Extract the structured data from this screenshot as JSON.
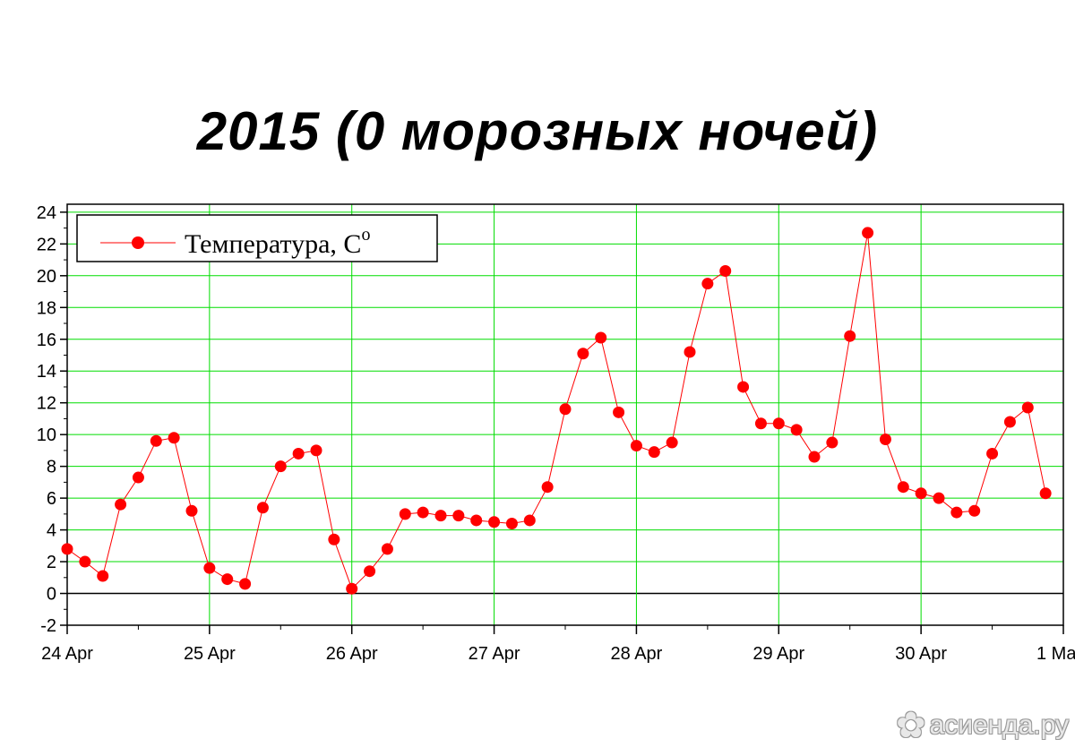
{
  "title": "2015 (0 морозных ночей)",
  "watermark": {
    "text": "асиенда.ру",
    "icon": "flower-logo-icon"
  },
  "colors": {
    "series": "#ff0000",
    "grid": "#00dd00",
    "axis": "#000000",
    "zero_line": "#000000"
  },
  "chart_data": {
    "type": "line",
    "title": "2015 (0 морозных ночей)",
    "xlabel": "",
    "ylabel": "",
    "x_axis": {
      "type": "date",
      "range": [
        "2015-04-24",
        "2015-05-01"
      ],
      "tick_labels": [
        "24 Apr",
        "25 Apr",
        "26 Apr",
        "27 Apr",
        "28 Apr",
        "29 Apr",
        "30 Apr",
        "1 Ma"
      ]
    },
    "ylim": [
      -2,
      24.5
    ],
    "y_ticks": [
      24,
      22,
      20,
      18,
      16,
      14,
      12,
      10,
      8,
      6,
      4,
      2,
      0,
      -2
    ],
    "grid": true,
    "legend": {
      "placement": "top-left",
      "label": "Температура, C",
      "label_superscript": "o"
    },
    "series": [
      {
        "name": "Температура, Co",
        "color": "#ff0000",
        "marker": "circle",
        "x": [
          "2015-04-24 00:00",
          "2015-04-24 03:00",
          "2015-04-24 06:00",
          "2015-04-24 09:00",
          "2015-04-24 12:00",
          "2015-04-24 15:00",
          "2015-04-24 18:00",
          "2015-04-24 21:00",
          "2015-04-25 00:00",
          "2015-04-25 03:00",
          "2015-04-25 06:00",
          "2015-04-25 09:00",
          "2015-04-25 12:00",
          "2015-04-25 15:00",
          "2015-04-25 18:00",
          "2015-04-25 21:00",
          "2015-04-26 00:00",
          "2015-04-26 03:00",
          "2015-04-26 06:00",
          "2015-04-26 09:00",
          "2015-04-26 12:00",
          "2015-04-26 15:00",
          "2015-04-26 18:00",
          "2015-04-26 21:00",
          "2015-04-27 00:00",
          "2015-04-27 03:00",
          "2015-04-27 06:00",
          "2015-04-27 09:00",
          "2015-04-27 12:00",
          "2015-04-27 15:00",
          "2015-04-27 18:00",
          "2015-04-27 21:00",
          "2015-04-28 00:00",
          "2015-04-28 03:00",
          "2015-04-28 06:00",
          "2015-04-28 09:00",
          "2015-04-28 12:00",
          "2015-04-28 15:00",
          "2015-04-28 18:00",
          "2015-04-28 21:00",
          "2015-04-29 00:00",
          "2015-04-29 03:00",
          "2015-04-29 06:00",
          "2015-04-29 09:00",
          "2015-04-29 12:00",
          "2015-04-29 15:00",
          "2015-04-29 18:00",
          "2015-04-29 21:00",
          "2015-04-30 00:00",
          "2015-04-30 03:00",
          "2015-04-30 06:00",
          "2015-04-30 09:00",
          "2015-04-30 12:00",
          "2015-04-30 15:00",
          "2015-04-30 18:00",
          "2015-04-30 21:00"
        ],
        "values": [
          2.8,
          2.0,
          1.1,
          5.6,
          7.3,
          9.6,
          9.8,
          5.2,
          1.6,
          0.9,
          0.6,
          5.4,
          8.0,
          8.8,
          9.0,
          3.4,
          0.3,
          1.4,
          2.8,
          5.0,
          5.1,
          4.9,
          4.9,
          4.6,
          4.5,
          4.4,
          4.6,
          6.7,
          11.6,
          15.1,
          16.1,
          11.4,
          9.3,
          8.9,
          9.5,
          15.2,
          19.5,
          20.3,
          13.0,
          10.7,
          10.7,
          10.3,
          8.6,
          9.5,
          16.2,
          22.7,
          9.7,
          6.7,
          6.3,
          6.0,
          5.1,
          5.2,
          8.8,
          10.8,
          11.7,
          6.3
        ]
      }
    ]
  }
}
